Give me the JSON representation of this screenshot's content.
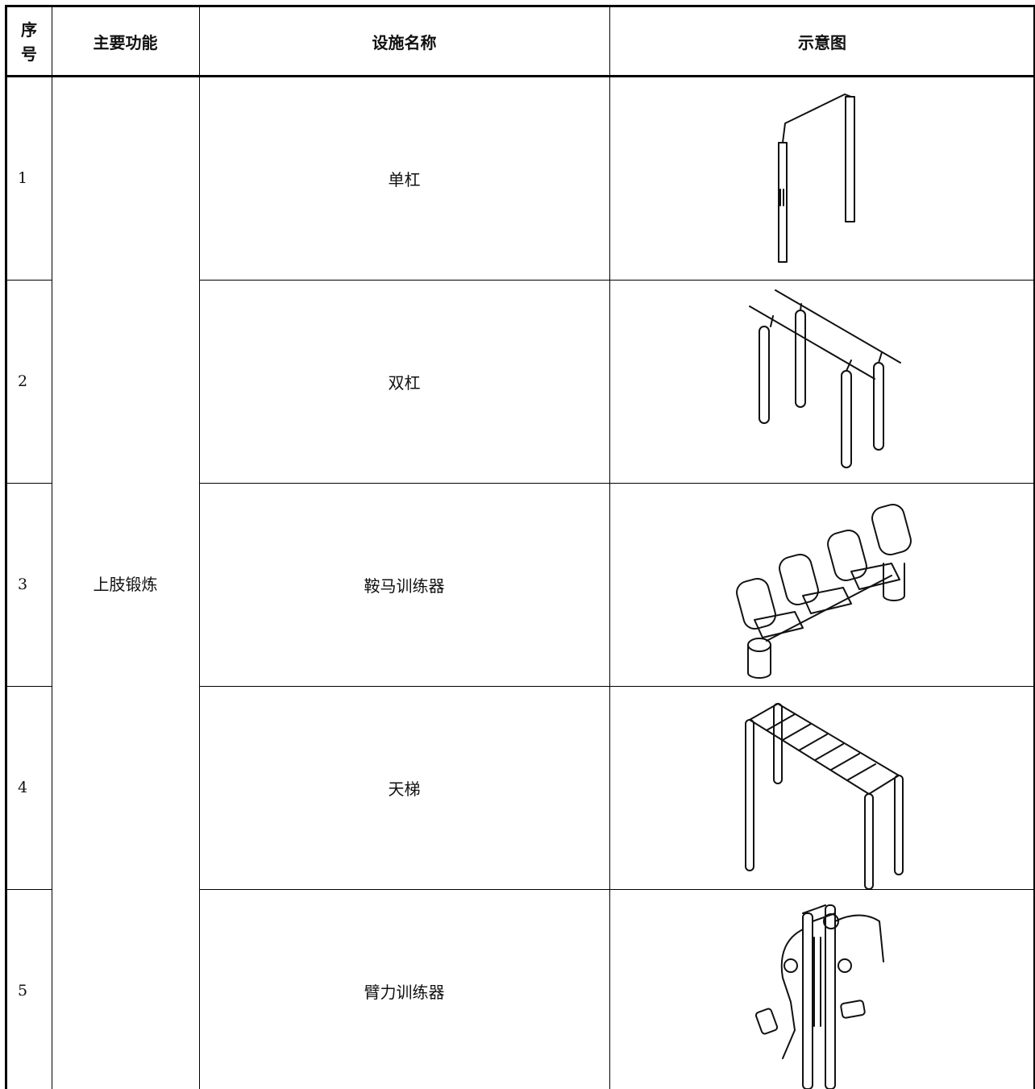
{
  "table": {
    "header": [
      "序号",
      "主要功能",
      "设施名称",
      "示意图"
    ],
    "function": "上肢锻炼",
    "rows": [
      [
        "1",
        "单杠"
      ],
      [
        "2",
        "双杠"
      ],
      [
        "3",
        "鞍马训练器"
      ],
      [
        "4",
        "天梯"
      ],
      [
        "5",
        "臂力训练器"
      ]
    ]
  }
}
